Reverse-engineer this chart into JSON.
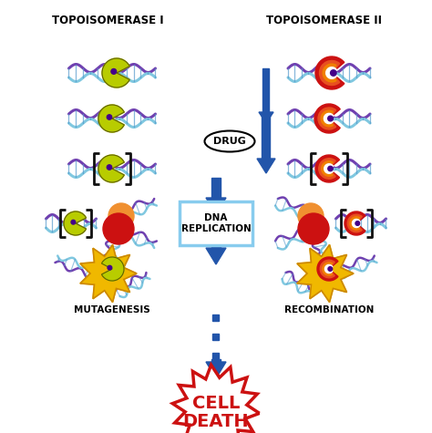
{
  "title_left": "TOPOISOMERASE I",
  "title_right": "TOPOISOMERASE II",
  "label_drug": "DRUG",
  "label_dna_rep": "DNA\nREPLICATION",
  "label_mutagenesis": "MUTAGENESIS",
  "label_recombination": "RECOMBINATION",
  "label_cell_death": "CELL\nDEATH",
  "bg_color": "#ffffff",
  "arrow_color": "#2255aa",
  "dna_purple": "#7040b0",
  "dna_light": "#80c8e0",
  "enzyme1_color": "#b8cc00",
  "enzyme2_color": "#cc1111",
  "enzyme2_inner": "#e05050",
  "drug_spot": "#cc3300",
  "bracket_color": "#111111",
  "rep_box_color": "#88ccee",
  "explosion_color": "#f0b800",
  "explosion_border": "#cc8800",
  "cell_death_color": "#cc1111",
  "orange_ball": "#f09030",
  "red_ball": "#cc1111",
  "purple_dot": "#440088"
}
